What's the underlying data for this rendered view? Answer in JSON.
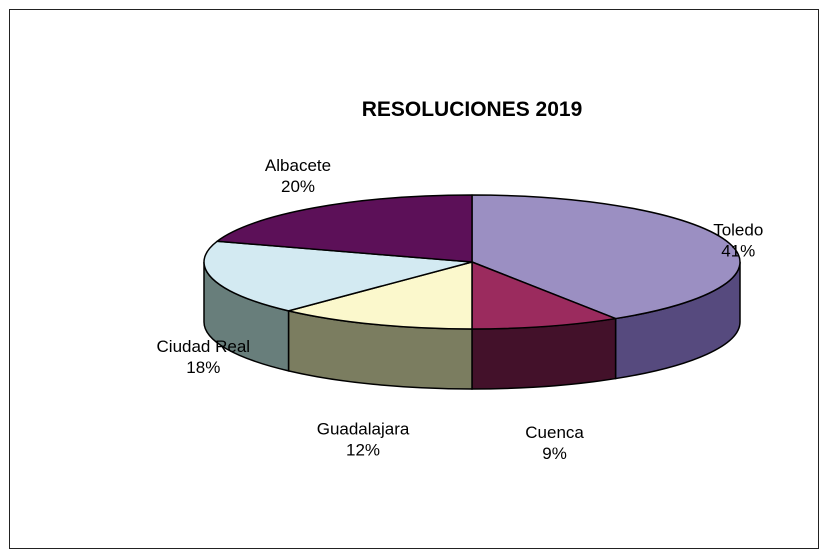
{
  "chart_data": {
    "type": "pie",
    "style": "3d",
    "title": "RESOLUCIONES 2019",
    "slices": [
      {
        "label": "Toledo",
        "value": 41,
        "pct_label": "41%",
        "top_color": "#9b8fc2",
        "side_color": "#564a7e"
      },
      {
        "label": "Cuenca",
        "value": 9,
        "pct_label": "9%",
        "top_color": "#9b2b5e",
        "side_color": "#43112a"
      },
      {
        "label": "Guadalajara",
        "value": 12,
        "pct_label": "12%",
        "top_color": "#fbf8cc",
        "side_color": "#7b7d60"
      },
      {
        "label": "Ciudad Real",
        "value": 18,
        "pct_label": "18%",
        "top_color": "#d3eaf2",
        "side_color": "#687e7b"
      },
      {
        "label": "Albacete",
        "value": 20,
        "pct_label": "20%",
        "top_color": "#5c1058",
        "side_color": "#3a0a37"
      }
    ]
  }
}
